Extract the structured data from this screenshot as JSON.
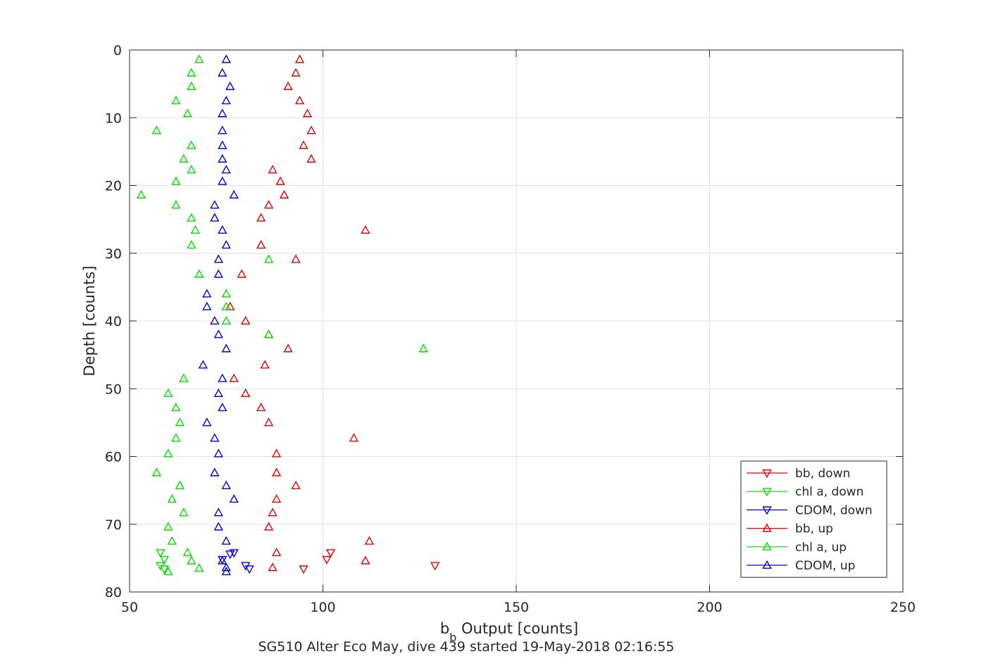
{
  "chart_data": {
    "type": "scatter",
    "title": "",
    "caption": "SG510 Alter Eco May, dive 439 started 19-May-2018 02:16:55",
    "xlabel": {
      "main": "b",
      "sub": "b",
      "rest": " Output [counts]"
    },
    "ylabel": "Depth [counts]",
    "xlim": [
      50,
      250
    ],
    "ylim": [
      0,
      80
    ],
    "y_reversed": true,
    "xticks": [
      50,
      100,
      150,
      200,
      250
    ],
    "yticks": [
      0,
      10,
      20,
      30,
      40,
      50,
      60,
      70,
      80
    ],
    "grid": true,
    "legend_position": "bottom-right",
    "series": [
      {
        "name": "bb, down",
        "color": "#e00000",
        "marker": "triangle-down",
        "points": [
          [
            102,
            74.2
          ],
          [
            101,
            75.2
          ],
          [
            129,
            76.1
          ],
          [
            95,
            76.6
          ]
        ]
      },
      {
        "name": "chl a, down",
        "color": "#00dd00",
        "marker": "triangle-down",
        "points": [
          [
            58,
            74.2
          ],
          [
            59,
            75.2
          ],
          [
            58,
            76.1
          ],
          [
            59,
            76.6
          ]
        ]
      },
      {
        "name": "CDOM, down",
        "color": "#0000e0",
        "marker": "triangle-down",
        "points": [
          [
            77,
            74.2
          ],
          [
            76,
            74.4
          ],
          [
            74,
            75.2
          ],
          [
            80,
            76.1
          ],
          [
            81,
            76.6
          ]
        ]
      },
      {
        "name": "bb, up",
        "color": "#e00000",
        "marker": "triangle-up",
        "points": [
          [
            94,
            1.4
          ],
          [
            93,
            3.4
          ],
          [
            91,
            5.4
          ],
          [
            94,
            7.5
          ],
          [
            96,
            9.4
          ],
          [
            97,
            11.9
          ],
          [
            95,
            14.1
          ],
          [
            97,
            16.1
          ],
          [
            87,
            17.7
          ],
          [
            89,
            19.4
          ],
          [
            90,
            21.4
          ],
          [
            86,
            22.9
          ],
          [
            84,
            24.8
          ],
          [
            111,
            26.6
          ],
          [
            84,
            28.8
          ],
          [
            93,
            30.9
          ],
          [
            79,
            33.1
          ],
          [
            76,
            37.9
          ],
          [
            80,
            40.0
          ],
          [
            86,
            42.0
          ],
          [
            91,
            44.1
          ],
          [
            85,
            46.5
          ],
          [
            77,
            48.5
          ],
          [
            80,
            50.7
          ],
          [
            84,
            52.8
          ],
          [
            86,
            55.0
          ],
          [
            108,
            57.3
          ],
          [
            88,
            59.6
          ],
          [
            88,
            62.4
          ],
          [
            93,
            64.3
          ],
          [
            88,
            66.3
          ],
          [
            87,
            68.3
          ],
          [
            86,
            70.4
          ],
          [
            112,
            72.5
          ],
          [
            88,
            74.2
          ],
          [
            111,
            75.4
          ],
          [
            87,
            76.4
          ]
        ]
      },
      {
        "name": "chl a, up",
        "color": "#00dd00",
        "marker": "triangle-up",
        "points": [
          [
            68,
            1.4
          ],
          [
            66,
            3.4
          ],
          [
            66,
            5.4
          ],
          [
            62,
            7.5
          ],
          [
            65,
            9.4
          ],
          [
            57,
            11.9
          ],
          [
            66,
            14.1
          ],
          [
            64,
            16.1
          ],
          [
            66,
            17.7
          ],
          [
            62,
            19.4
          ],
          [
            53,
            21.4
          ],
          [
            62,
            22.9
          ],
          [
            66,
            24.8
          ],
          [
            67,
            26.6
          ],
          [
            66,
            28.8
          ],
          [
            86,
            30.9
          ],
          [
            68,
            33.1
          ],
          [
            75,
            36.0
          ],
          [
            75,
            37.9
          ],
          [
            75,
            40.0
          ],
          [
            86,
            42.0
          ],
          [
            126,
            44.1
          ],
          [
            64,
            48.5
          ],
          [
            60,
            50.7
          ],
          [
            62,
            52.8
          ],
          [
            63,
            55.0
          ],
          [
            62,
            57.3
          ],
          [
            60,
            59.6
          ],
          [
            57,
            62.4
          ],
          [
            63,
            64.3
          ],
          [
            61,
            66.3
          ],
          [
            64,
            68.3
          ],
          [
            60,
            70.4
          ],
          [
            61,
            72.5
          ],
          [
            65,
            74.2
          ],
          [
            66,
            75.4
          ],
          [
            68,
            76.5
          ],
          [
            60,
            77.0
          ]
        ]
      },
      {
        "name": "CDOM, up",
        "color": "#0000e0",
        "marker": "triangle-up",
        "points": [
          [
            75,
            1.4
          ],
          [
            74,
            3.4
          ],
          [
            76,
            5.4
          ],
          [
            75,
            7.5
          ],
          [
            74,
            9.4
          ],
          [
            74,
            11.9
          ],
          [
            74,
            14.1
          ],
          [
            74,
            16.1
          ],
          [
            75,
            17.7
          ],
          [
            74,
            19.4
          ],
          [
            77,
            21.4
          ],
          [
            72,
            22.9
          ],
          [
            72,
            24.8
          ],
          [
            74,
            26.6
          ],
          [
            75,
            28.8
          ],
          [
            73,
            30.9
          ],
          [
            73,
            33.1
          ],
          [
            70,
            36.0
          ],
          [
            70,
            37.9
          ],
          [
            72,
            40.0
          ],
          [
            73,
            42.0
          ],
          [
            75,
            44.1
          ],
          [
            69,
            46.5
          ],
          [
            74,
            48.5
          ],
          [
            73,
            50.7
          ],
          [
            74,
            52.8
          ],
          [
            70,
            55.0
          ],
          [
            72,
            57.3
          ],
          [
            73,
            59.6
          ],
          [
            72,
            62.4
          ],
          [
            75,
            64.3
          ],
          [
            77,
            66.3
          ],
          [
            73,
            68.3
          ],
          [
            73,
            70.4
          ],
          [
            75,
            72.5
          ],
          [
            74,
            75.4
          ],
          [
            75,
            76.4
          ],
          [
            75,
            77.0
          ]
        ]
      }
    ]
  }
}
